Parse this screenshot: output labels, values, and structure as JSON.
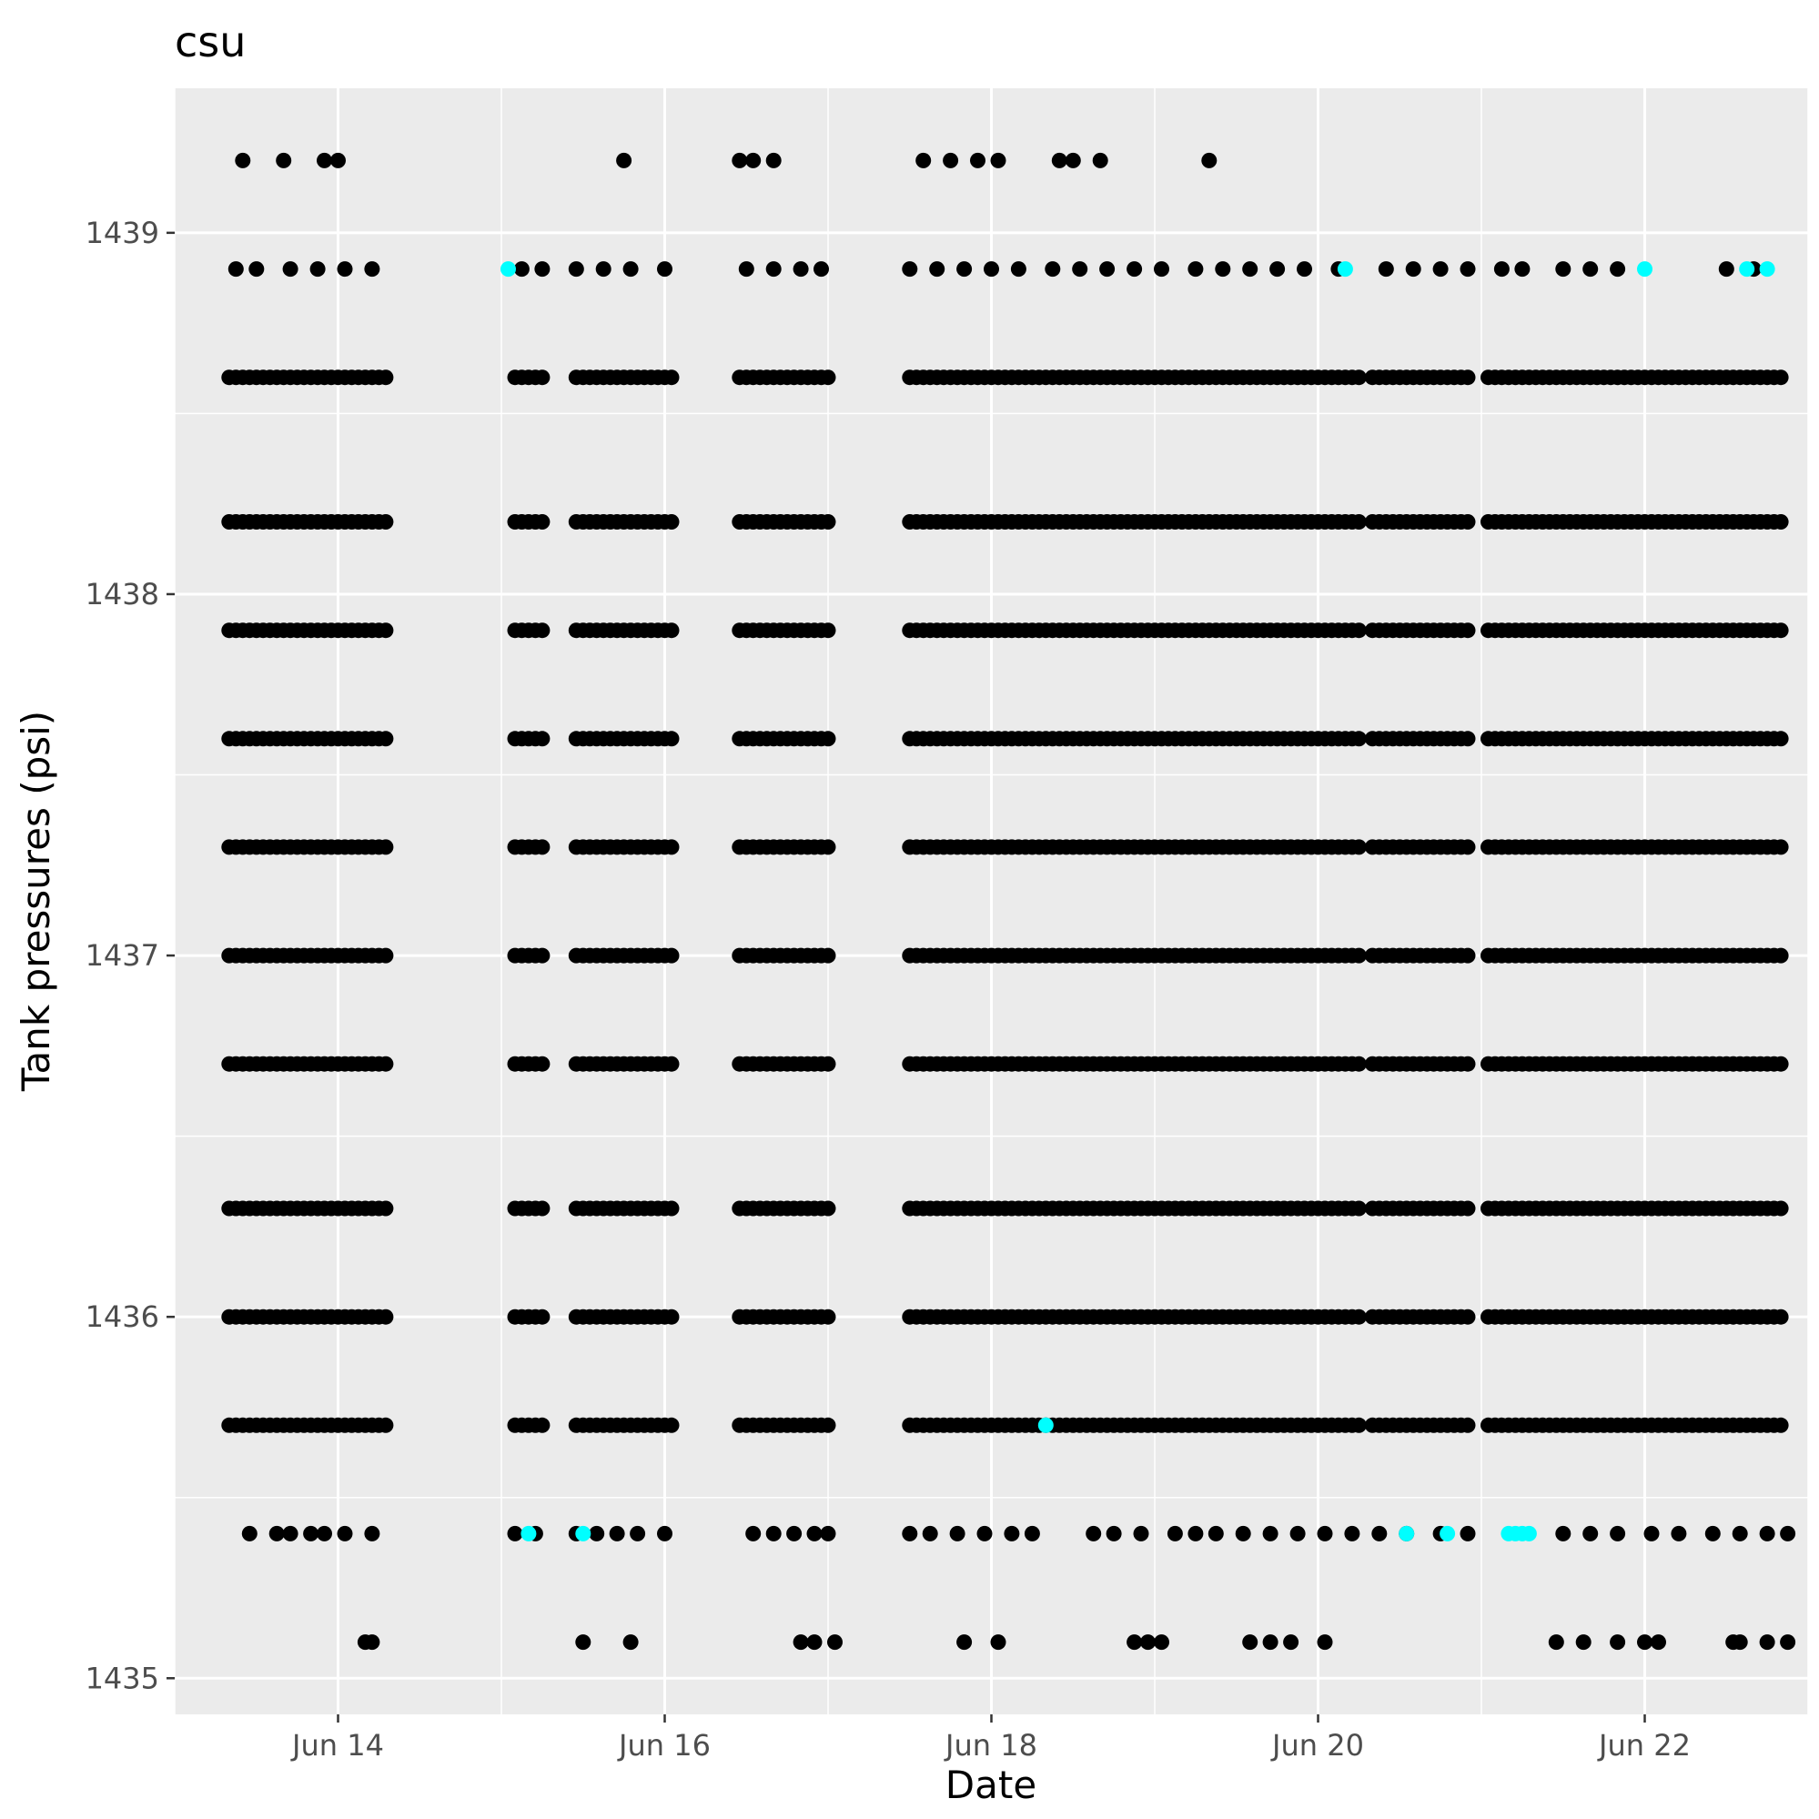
{
  "chart_data": {
    "type": "scatter",
    "title": "csu",
    "xlabel": "Date",
    "ylabel": "Tank pressures (psi)",
    "xlim": [
      "2022-06-13T00:00",
      "2022-06-23T00:00"
    ],
    "ylim": [
      1434.9,
      1439.4
    ],
    "x_ticks": [
      {
        "label": "Jun 14",
        "date": "2022-06-14"
      },
      {
        "label": "Jun 16",
        "date": "2022-06-16"
      },
      {
        "label": "Jun 18",
        "date": "2022-06-18"
      },
      {
        "label": "Jun 20",
        "date": "2022-06-20"
      },
      {
        "label": "Jun 22",
        "date": "2022-06-22"
      }
    ],
    "y_ticks": [
      {
        "label": "1435",
        "value": 1435
      },
      {
        "label": "1436",
        "value": 1436
      },
      {
        "label": "1437",
        "value": 1437
      },
      {
        "label": "1438",
        "value": 1438
      },
      {
        "label": "1439",
        "value": 1439
      }
    ],
    "grid": true,
    "legend": "none",
    "colors": {
      "panel": "#ebebeb",
      "grid": "#ffffff",
      "point": "#000000",
      "highlight": "#00ffff"
    },
    "y_levels": [
      1435.1,
      1435.4,
      1435.7,
      1436.0,
      1436.3,
      1436.7,
      1437.0,
      1437.3,
      1437.6,
      1437.9,
      1438.2,
      1438.6,
      1438.9,
      1439.2
    ],
    "full_level_segments": [
      [
        "2022-06-13T08:00",
        "2022-06-14T07:00"
      ],
      [
        "2022-06-15T02:00",
        "2022-06-15T06:00"
      ],
      [
        "2022-06-15T11:00",
        "2022-06-16T01:00"
      ],
      [
        "2022-06-16T11:00",
        "2022-06-17T00:00"
      ],
      [
        "2022-06-17T12:00",
        "2022-06-18T07:00"
      ],
      [
        "2022-06-18T08:00",
        "2022-06-19T04:00"
      ],
      [
        "2022-06-19T05:00",
        "2022-06-20T06:00"
      ],
      [
        "2022-06-20T08:00",
        "2022-06-20T17:00"
      ],
      [
        "2022-06-20T18:00",
        "2022-06-20T22:00"
      ],
      [
        "2022-06-21T01:00",
        "2022-06-21T06:00"
      ],
      [
        "2022-06-21T07:00",
        "2022-06-22T07:00"
      ],
      [
        "2022-06-22T08:00",
        "2022-06-22T20:00"
      ]
    ],
    "sparse_points": {
      "1435.1": [
        "2022-06-14T04:00",
        "2022-06-14T05:00",
        "2022-06-15T12:00",
        "2022-06-15T19:00",
        "2022-06-16T20:00",
        "2022-06-16T22:00",
        "2022-06-17T01:00",
        "2022-06-17T20:00",
        "2022-06-18T01:00",
        "2022-06-18T21:00",
        "2022-06-18T23:00",
        "2022-06-19T01:00",
        "2022-06-19T14:00",
        "2022-06-19T17:00",
        "2022-06-19T20:00",
        "2022-06-20T01:00",
        "2022-06-21T11:00",
        "2022-06-21T15:00",
        "2022-06-21T20:00",
        "2022-06-22T00:00",
        "2022-06-22T02:00",
        "2022-06-22T13:00",
        "2022-06-22T14:00",
        "2022-06-22T18:00",
        "2022-06-22T21:00"
      ],
      "1435.4": [
        "2022-06-13T11:00",
        "2022-06-13T15:00",
        "2022-06-13T17:00",
        "2022-06-13T20:00",
        "2022-06-13T22:00",
        "2022-06-14T01:00",
        "2022-06-14T05:00",
        "2022-06-15T02:00",
        "2022-06-15T05:00",
        "2022-06-15T11:00",
        "2022-06-15T14:00",
        "2022-06-15T17:00",
        "2022-06-15T20:00",
        "2022-06-16T00:00",
        "2022-06-16T13:00",
        "2022-06-16T16:00",
        "2022-06-16T19:00",
        "2022-06-16T22:00",
        "2022-06-17T00:00",
        "2022-06-17T12:00",
        "2022-06-17T15:00",
        "2022-06-17T19:00",
        "2022-06-17T23:00",
        "2022-06-18T03:00",
        "2022-06-18T06:00",
        "2022-06-18T15:00",
        "2022-06-18T18:00",
        "2022-06-18T22:00",
        "2022-06-19T03:00",
        "2022-06-19T06:00",
        "2022-06-19T09:00",
        "2022-06-19T13:00",
        "2022-06-19T17:00",
        "2022-06-19T21:00",
        "2022-06-20T01:00",
        "2022-06-20T05:00",
        "2022-06-20T09:00",
        "2022-06-20T13:00",
        "2022-06-20T18:00",
        "2022-06-20T22:00",
        "2022-06-21T12:00",
        "2022-06-21T16:00",
        "2022-06-21T20:00",
        "2022-06-22T01:00",
        "2022-06-22T05:00",
        "2022-06-22T10:00",
        "2022-06-22T14:00",
        "2022-06-22T18:00",
        "2022-06-22T21:00"
      ],
      "1438.9": [
        "2022-06-13T09:00",
        "2022-06-13T12:00",
        "2022-06-13T17:00",
        "2022-06-13T21:00",
        "2022-06-14T01:00",
        "2022-06-14T05:00",
        "2022-06-15T03:00",
        "2022-06-15T06:00",
        "2022-06-15T11:00",
        "2022-06-15T15:00",
        "2022-06-15T19:00",
        "2022-06-16T00:00",
        "2022-06-16T12:00",
        "2022-06-16T16:00",
        "2022-06-16T20:00",
        "2022-06-16T23:00",
        "2022-06-17T12:00",
        "2022-06-17T16:00",
        "2022-06-17T20:00",
        "2022-06-18T00:00",
        "2022-06-18T04:00",
        "2022-06-18T09:00",
        "2022-06-18T13:00",
        "2022-06-18T17:00",
        "2022-06-18T21:00",
        "2022-06-19T01:00",
        "2022-06-19T06:00",
        "2022-06-19T10:00",
        "2022-06-19T14:00",
        "2022-06-19T18:00",
        "2022-06-19T22:00",
        "2022-06-20T03:00",
        "2022-06-20T10:00",
        "2022-06-20T14:00",
        "2022-06-20T18:00",
        "2022-06-20T22:00",
        "2022-06-21T03:00",
        "2022-06-21T06:00",
        "2022-06-21T12:00",
        "2022-06-21T16:00",
        "2022-06-21T20:00",
        "2022-06-22T12:00",
        "2022-06-22T16:00"
      ],
      "1439.2": [
        "2022-06-13T10:00",
        "2022-06-13T16:00",
        "2022-06-13T22:00",
        "2022-06-14T00:00",
        "2022-06-15T18:00",
        "2022-06-16T11:00",
        "2022-06-16T13:00",
        "2022-06-16T16:00",
        "2022-06-17T14:00",
        "2022-06-17T18:00",
        "2022-06-17T22:00",
        "2022-06-18T01:00",
        "2022-06-18T10:00",
        "2022-06-18T12:00",
        "2022-06-18T16:00",
        "2022-06-19T08:00"
      ]
    },
    "highlight_points": [
      {
        "x": "2022-06-15T01:00",
        "y": 1438.9
      },
      {
        "x": "2022-06-20T04:00",
        "y": 1438.9
      },
      {
        "x": "2022-06-22T00:00",
        "y": 1438.9
      },
      {
        "x": "2022-06-22T15:00",
        "y": 1438.9
      },
      {
        "x": "2022-06-22T18:00",
        "y": 1438.9
      },
      {
        "x": "2022-06-18T08:00",
        "y": 1435.7
      },
      {
        "x": "2022-06-15T04:00",
        "y": 1435.4
      },
      {
        "x": "2022-06-15T12:00",
        "y": 1435.4
      },
      {
        "x": "2022-06-20T13:00",
        "y": 1435.4
      },
      {
        "x": "2022-06-20T19:00",
        "y": 1435.4
      },
      {
        "x": "2022-06-21T04:00",
        "y": 1435.4
      },
      {
        "x": "2022-06-21T05:00",
        "y": 1435.4
      },
      {
        "x": "2022-06-21T06:00",
        "y": 1435.4
      },
      {
        "x": "2022-06-21T07:00",
        "y": 1435.4
      }
    ]
  }
}
